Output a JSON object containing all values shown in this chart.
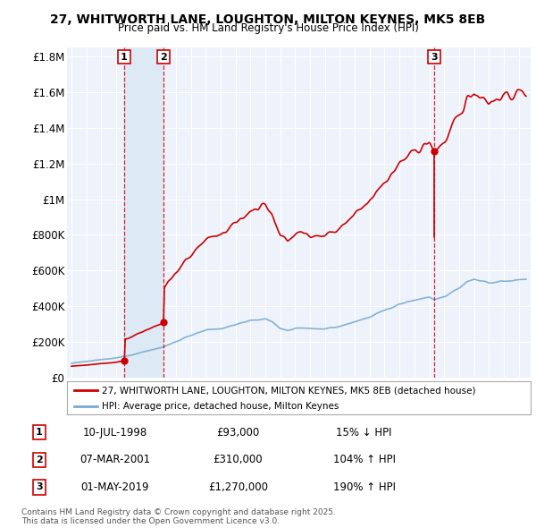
{
  "title": "27, WHITWORTH LANE, LOUGHTON, MILTON KEYNES, MK5 8EB",
  "subtitle": "Price paid vs. HM Land Registry's House Price Index (HPI)",
  "legend_property": "27, WHITWORTH LANE, LOUGHTON, MILTON KEYNES, MK5 8EB (detached house)",
  "legend_hpi": "HPI: Average price, detached house, Milton Keynes",
  "footnote": "Contains HM Land Registry data © Crown copyright and database right 2025.\nThis data is licensed under the Open Government Licence v3.0.",
  "sales": [
    {
      "label": "1",
      "date": "10-JUL-1998",
      "price": 93000,
      "pct": "15%",
      "dir": "↓"
    },
    {
      "label": "2",
      "date": "07-MAR-2001",
      "price": 310000,
      "pct": "104%",
      "dir": "↑"
    },
    {
      "label": "3",
      "date": "01-MAY-2019",
      "price": 1270000,
      "pct": "190%",
      "dir": "↑"
    }
  ],
  "sale_years": [
    1998.53,
    2001.18,
    2019.33
  ],
  "ylim": [
    0,
    1850000
  ],
  "xlim_start": 1994.7,
  "xlim_end": 2025.8,
  "red_color": "#cc0000",
  "blue_color": "#7aaad0",
  "shade_color": "#dce8f5",
  "vline_color": "#cc0000",
  "background_color": "#eef3fb",
  "grid_color": "#ffffff",
  "yticks": [
    0,
    200000,
    400000,
    600000,
    800000,
    1000000,
    1200000,
    1400000,
    1600000,
    1800000
  ],
  "ytick_labels": [
    "£0",
    "£200K",
    "£400K",
    "£600K",
    "£800K",
    "£1M",
    "£1.2M",
    "£1.4M",
    "£1.6M",
    "£1.8M"
  ]
}
